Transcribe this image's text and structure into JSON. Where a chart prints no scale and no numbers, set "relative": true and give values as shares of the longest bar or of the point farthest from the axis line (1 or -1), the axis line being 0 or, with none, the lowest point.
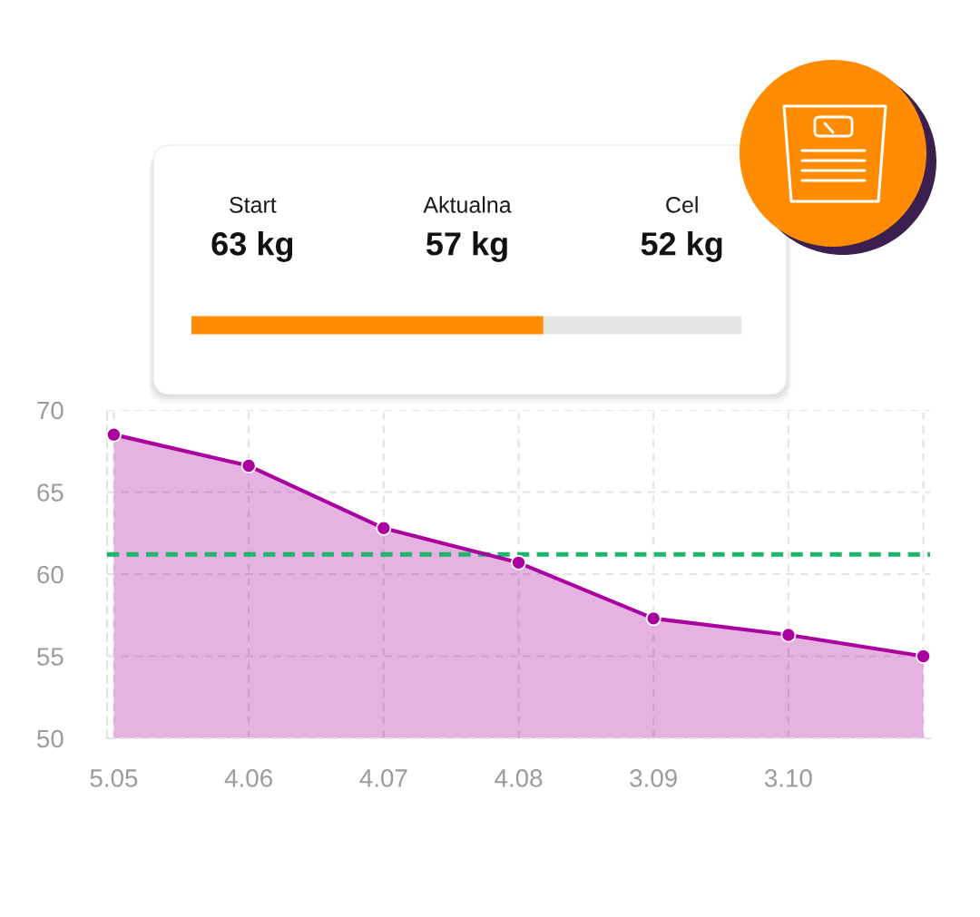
{
  "chart_data": [
    {
      "type": "other",
      "categories": [
        "Start",
        "Aktualna",
        "Cel"
      ],
      "value_labels": [
        "63 kg",
        "57 kg",
        "52 kg"
      ]
    },
    {
      "type": "bar",
      "orientation": "horizontal",
      "stacked": true,
      "relative": true,
      "categories": [
        null
      ],
      "series": [
        {
          "color": "#ff8c00",
          "values": [
            0.64
          ]
        },
        {
          "color": "#e6e6e6",
          "values": [
            0.36
          ]
        }
      ]
    },
    {
      "type": "area",
      "categories": [
        "5.05",
        "4.06",
        "4.07",
        "4.08",
        "3.09",
        "3.10",
        null
      ],
      "series": [
        {
          "color": "#aa00a0",
          "values": [
            68.5,
            66.6,
            62.8,
            60.7,
            57.3,
            56.3,
            55.0
          ]
        }
      ],
      "ylim": [
        50,
        70
      ],
      "yticks": [
        50,
        55,
        60,
        65,
        70
      ],
      "grid": true,
      "marker": "circle",
      "ref_lines": [
        {
          "axis": "y",
          "value": 61.2,
          "color": "#1db46c",
          "line_style": "dashed"
        }
      ]
    }
  ]
}
